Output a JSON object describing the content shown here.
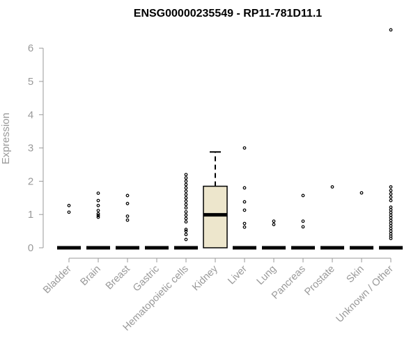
{
  "chart_data": {
    "type": "box",
    "title": "ENSG00000235549 - RP11-781D11.1",
    "xlabel": "",
    "ylabel": "Expression",
    "ylim": [
      0,
      6.7
    ],
    "yticks": [
      0,
      1,
      2,
      3,
      4,
      5,
      6
    ],
    "grid": false,
    "categories": [
      "Bladder",
      "Brain",
      "Breast",
      "Gastric",
      "Hematopoietic cells",
      "Kidney",
      "Liver",
      "Lung",
      "Pancreas",
      "Prostate",
      "Skin",
      "Unknown / Other"
    ],
    "colors": {
      "box_fill": "#EDE6CC",
      "stroke": "#000000",
      "axis": "#999999"
    },
    "series": [
      {
        "q1": 0,
        "median": 0,
        "q3": 0,
        "whisker_low": 0,
        "whisker_high": 0,
        "outliers": [
          1.07,
          1.27
        ]
      },
      {
        "q1": 0,
        "median": 0,
        "q3": 0,
        "whisker_low": 0,
        "whisker_high": 0,
        "outliers": [
          0.92,
          0.97,
          1.02,
          1.12,
          1.27,
          1.42,
          1.64
        ]
      },
      {
        "q1": 0,
        "median": 0,
        "q3": 0,
        "whisker_low": 0,
        "whisker_high": 0,
        "outliers": [
          0.83,
          0.95,
          1.33,
          1.57
        ]
      },
      {
        "q1": 0,
        "median": 0,
        "q3": 0,
        "whisker_low": 0,
        "whisker_high": 0,
        "outliers": []
      },
      {
        "q1": 0,
        "median": 0,
        "q3": 0,
        "whisker_low": 0,
        "whisker_high": 0,
        "outliers": [
          0.25,
          0.4,
          0.5,
          0.55,
          0.78,
          0.88,
          0.98,
          1.08,
          1.2,
          1.3,
          1.4,
          1.5,
          1.6,
          1.7,
          1.8,
          1.9,
          2.0,
          2.1,
          2.2
        ]
      },
      {
        "q1": 0,
        "median": 0.99,
        "q3": 1.85,
        "whisker_low": 0,
        "whisker_high": 2.88,
        "outliers": []
      },
      {
        "q1": 0,
        "median": 0,
        "q3": 0,
        "whisker_low": 0,
        "whisker_high": 0,
        "outliers": [
          0.62,
          0.73,
          1.13,
          1.38,
          1.8,
          3.0
        ]
      },
      {
        "q1": 0,
        "median": 0,
        "q3": 0,
        "whisker_low": 0,
        "whisker_high": 0,
        "outliers": [
          0.7,
          0.8
        ]
      },
      {
        "q1": 0,
        "median": 0,
        "q3": 0,
        "whisker_low": 0,
        "whisker_high": 0,
        "outliers": [
          0.63,
          0.8,
          1.57
        ]
      },
      {
        "q1": 0,
        "median": 0,
        "q3": 0,
        "whisker_low": 0,
        "whisker_high": 0,
        "outliers": [
          1.83
        ]
      },
      {
        "q1": 0,
        "median": 0,
        "q3": 0,
        "whisker_low": 0,
        "whisker_high": 0,
        "outliers": [
          1.65
        ]
      },
      {
        "q1": 0,
        "median": 0,
        "q3": 0,
        "whisker_low": 0,
        "whisker_high": 0,
        "outliers": [
          0.28,
          0.35,
          0.42,
          0.5,
          0.58,
          0.66,
          0.74,
          0.82,
          0.9,
          0.98,
          1.06,
          1.14,
          1.22,
          1.42,
          1.52,
          1.62,
          1.72,
          1.83,
          6.55
        ]
      }
    ]
  }
}
